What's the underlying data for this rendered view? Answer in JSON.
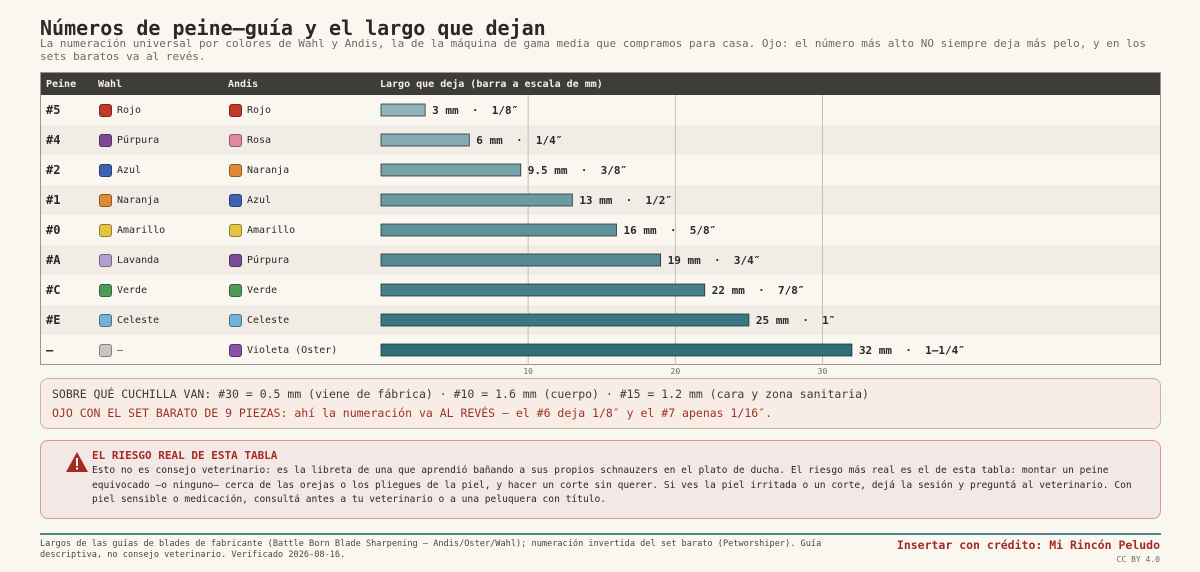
{
  "title": "Números de peine–guía y el largo que dejan",
  "subtitle": "La numeración universal por colores de Wahl y Andis, la de la máquina de gama media que compramos para casa. Ojo: el número más alto NO siempre deja más pelo, y en los sets baratos va al revés.",
  "table": {
    "headers": {
      "peine": "Peine",
      "wahl": "Wahl",
      "andis": "Andis",
      "bar": "Largo que deja (barra a escala de mm)"
    },
    "rows": [
      {
        "peine": "#5",
        "wahl": {
          "name": "Rojo",
          "color": "#c0392b"
        },
        "andis": {
          "name": "Rojo",
          "color": "#c0392b"
        },
        "label": "3 mm  ·  1/8″"
      },
      {
        "peine": "#4",
        "wahl": {
          "name": "Púrpura",
          "color": "#7d4a98"
        },
        "andis": {
          "name": "Rosa",
          "color": "#dc8aa3"
        },
        "label": "6 mm  ·  1/4″"
      },
      {
        "peine": "#2",
        "wahl": {
          "name": "Azul",
          "color": "#3d62b3"
        },
        "andis": {
          "name": "Naranja",
          "color": "#e08a35"
        },
        "label": "9.5 mm  ·  3/8″"
      },
      {
        "peine": "#1",
        "wahl": {
          "name": "Naranja",
          "color": "#e08a35"
        },
        "andis": {
          "name": "Azul",
          "color": "#3d62b3"
        },
        "label": "13 mm  ·  1/2″"
      },
      {
        "peine": "#0",
        "wahl": {
          "name": "Amarillo",
          "color": "#e4c440"
        },
        "andis": {
          "name": "Amarillo",
          "color": "#e4c440"
        },
        "label": "16 mm  ·  5/8″"
      },
      {
        "peine": "#A",
        "wahl": {
          "name": "Lavanda",
          "color": "#b29ed1"
        },
        "andis": {
          "name": "Púrpura",
          "color": "#7d4a98"
        },
        "label": "19 mm  ·  3/4″"
      },
      {
        "peine": "#C",
        "wahl": {
          "name": "Verde",
          "color": "#4f9a5a"
        },
        "andis": {
          "name": "Verde",
          "color": "#4f9a5a"
        },
        "label": "22 mm  ·  7/8″"
      },
      {
        "peine": "#E",
        "wahl": {
          "name": "Celeste",
          "color": "#72b3d6"
        },
        "andis": {
          "name": "Celeste",
          "color": "#72b3d6"
        },
        "label": "25 mm  ·  1″"
      },
      {
        "peine": "—",
        "wahl": {
          "name": "—",
          "color": "#c9c6c0"
        },
        "andis": {
          "name": "Violeta (Oster)",
          "color": "#8e4fa8"
        },
        "label": "32 mm  ·  1–1/4″"
      }
    ]
  },
  "chart_data": {
    "type": "bar",
    "orientation": "horizontal",
    "categories": [
      "#5",
      "#4",
      "#2",
      "#1",
      "#0",
      "#A",
      "#C",
      "#E",
      "—"
    ],
    "values": [
      3,
      6,
      9.5,
      13,
      16,
      19,
      22,
      25,
      32
    ],
    "xlim": [
      0,
      53
    ],
    "xticks": [
      10,
      20,
      30
    ],
    "grid": true,
    "bar_colors": {
      "start": "#8fb3b8",
      "end": "#2f6f78"
    }
  },
  "callout_cuchillas": {
    "line1": "SOBRE QUÉ CUCHILLA VAN: #30 = 0.5 mm (viene de fábrica) · #10 = 1.6 mm (cuerpo) · #15 = 1.2 mm (cara y zona sanitaria)",
    "line2": "OJO CON EL SET BARATO DE 9 PIEZAS: ahí la numeración va AL REVÉS — el #6 deja 1/8″ y el #7 apenas 1/16″."
  },
  "callout_riesgo": {
    "icon": "warning-triangle-icon",
    "title": "EL RIESGO REAL DE ESTA TABLA",
    "text": "Esto no es consejo veterinario: es la libreta de una que aprendió bañando a sus propios schnauzers en el plato de ducha. El riesgo más real es el de esta tabla: montar un peine equivocado —o ninguno— cerca de las orejas o los pliegues de la piel, y hacer un corte sin querer. Si ves la piel irritada o un corte, dejá la sesión y preguntá al veterinario. Con piel sensible o medicación, consultá antes a tu veterinario o a una peluquera con título."
  },
  "footer": {
    "sources": "Largos de las guías de blades de fabricante (Battle Born Blade Sharpening — Andis/Oster/Wahl); numeración invertida del set barato (Petworshiper). Guía descriptiva, no consejo veterinario. Verificado 2026-08-16.",
    "credit": "Insertar con crédito: Mi Rincón Peludo",
    "license": "CC BY 4.0"
  }
}
